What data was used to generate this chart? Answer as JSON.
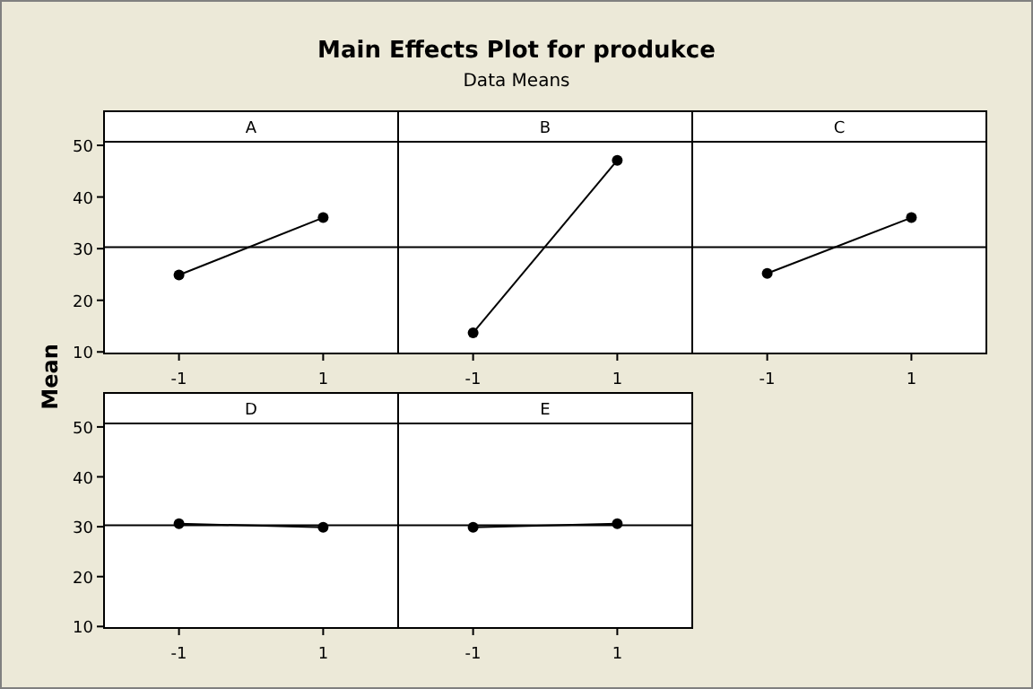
{
  "chart_data": [
    {
      "type": "line",
      "ylabel": "Mean",
      "xlabel": "A",
      "categories": [
        "-1",
        "1"
      ],
      "series": [
        {
          "color": "#000000",
          "values": [
            24.9,
            36.0
          ]
        }
      ],
      "ylim": [
        9.7,
        50.7
      ],
      "yticks": [
        10,
        20,
        30,
        40,
        50
      ],
      "ref_lines": [
        {
          "axis": "y",
          "value": 30.3,
          "color": "#000000"
        }
      ],
      "marker": "circle",
      "grid": false
    },
    {
      "type": "line",
      "title": "Main Effects Plot for produkce",
      "subtitle": "Data Means",
      "xlabel": "B",
      "categories": [
        "-1",
        "1"
      ],
      "series": [
        {
          "color": "#000000",
          "values": [
            13.7,
            47.1
          ]
        }
      ],
      "ylim": [
        9.7,
        50.7
      ],
      "ref_lines": [
        {
          "axis": "y",
          "value": 30.3,
          "color": "#000000"
        }
      ],
      "marker": "circle",
      "grid": false,
      "tick_labels": "x"
    },
    {
      "type": "line",
      "xlabel": "C",
      "categories": [
        "-1",
        "1"
      ],
      "series": [
        {
          "color": "#000000",
          "values": [
            25.2,
            36.0
          ]
        }
      ],
      "ylim": [
        9.7,
        50.7
      ],
      "ref_lines": [
        {
          "axis": "y",
          "value": 30.3,
          "color": "#000000"
        }
      ],
      "marker": "circle",
      "grid": false,
      "tick_labels": "x"
    },
    {
      "type": "line",
      "xlabel": "D",
      "categories": [
        "-1",
        "1"
      ],
      "series": [
        {
          "color": "#000000",
          "values": [
            30.6,
            29.9
          ]
        }
      ],
      "ylim": [
        9.7,
        50.7
      ],
      "yticks": [
        10,
        20,
        30,
        40,
        50
      ],
      "ref_lines": [
        {
          "axis": "y",
          "value": 30.3,
          "color": "#000000"
        }
      ],
      "marker": "circle",
      "grid": false
    },
    {
      "type": "line",
      "xlabel": "E",
      "categories": [
        "-1",
        "1"
      ],
      "series": [
        {
          "color": "#000000",
          "values": [
            29.9,
            30.6
          ]
        }
      ],
      "ylim": [
        9.7,
        50.7
      ],
      "ref_lines": [
        {
          "axis": "y",
          "value": 30.3,
          "color": "#000000"
        }
      ],
      "marker": "circle",
      "grid": false,
      "tick_labels": "x"
    }
  ]
}
